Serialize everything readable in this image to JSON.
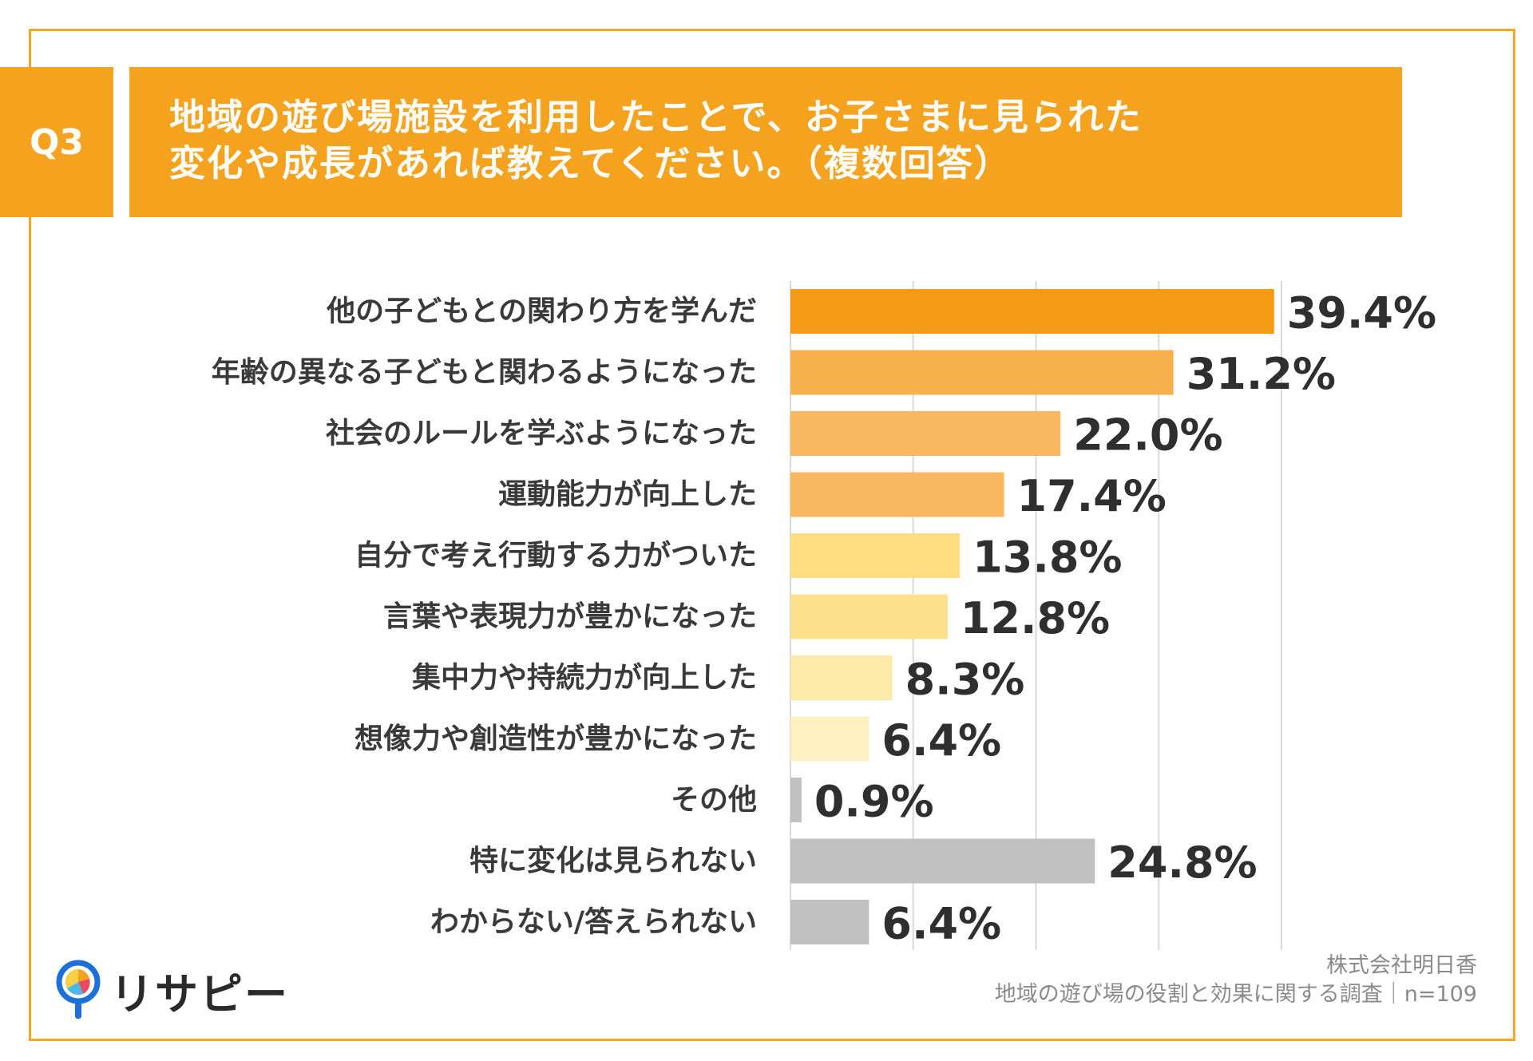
{
  "question": {
    "badge": "Q3",
    "line1": "地域の遊び場施設を利用したことで、お子さまに見られた",
    "line2": "変化や成長があれば教えてください。（複数回答）"
  },
  "chart_data": {
    "type": "bar",
    "orientation": "horizontal",
    "title": "地域の遊び場施設を利用したことで、お子さまに見られた変化や成長があれば教えてください。（複数回答）",
    "xlabel": "",
    "ylabel": "",
    "xlim": [
      0,
      40
    ],
    "gridlines": [
      10,
      20,
      30,
      40
    ],
    "unit": "%",
    "categories": [
      "他の子どもとの関わり方を学んだ",
      "年齢の異なる子どもと関わるようになった",
      "社会のルールを学ぶようになった",
      "運動能力が向上した",
      "自分で考え行動する力がついた",
      "言葉や表現力が豊かになった",
      "集中力や持続力が向上した",
      "想像力や創造性が豊かになった",
      "その他",
      "特に変化は見られない",
      "わからない/答えられない"
    ],
    "values": [
      39.4,
      31.2,
      22.0,
      17.4,
      13.8,
      12.8,
      8.3,
      6.4,
      0.9,
      24.8,
      6.4
    ],
    "labels": [
      "39.4%",
      "31.2%",
      "22.0%",
      "17.4%",
      "13.8%",
      "12.8%",
      "8.3%",
      "6.4%",
      "0.9%",
      "24.8%",
      "6.4%"
    ],
    "colors": [
      "#f59b13",
      "#f8b04c",
      "#f9b860",
      "#f9b860",
      "#fddd80",
      "#fde08c",
      "#feeaa8",
      "#fef0c0",
      "#c0c0c0",
      "#c0c0c0",
      "#c0c0c0"
    ]
  },
  "source": {
    "company": "株式会社明日香",
    "survey": "地域の遊び場の役割と効果に関する調査｜n=109"
  },
  "logo": {
    "text": "リサピー",
    "icon": "pin-logo-icon"
  }
}
